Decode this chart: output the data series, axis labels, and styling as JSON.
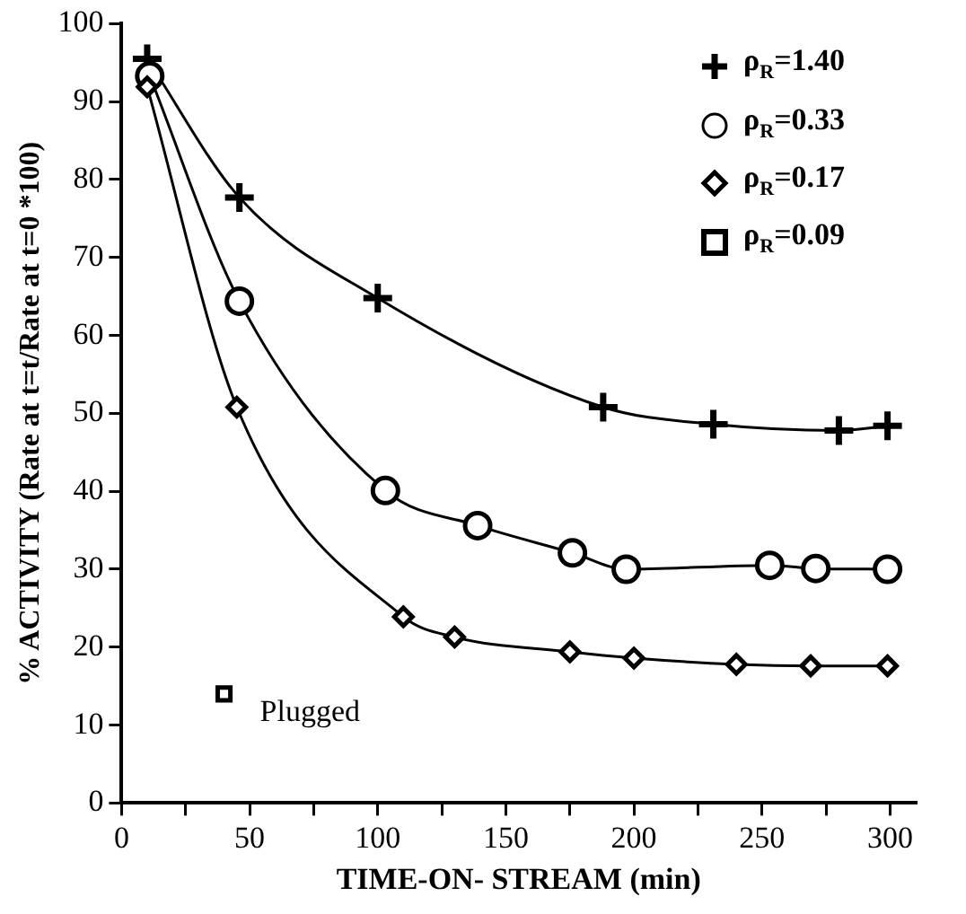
{
  "chart_data": {
    "type": "line",
    "xlabel": "TIME-ON- STREAM (min)",
    "ylabel": "% ACTIVITY (Rate at t=t/Rate at t=0 *100)",
    "xlim": [
      0,
      310
    ],
    "xticks": [
      0,
      {
        "value": 25,
        "label": null
      },
      50,
      {
        "value": 75,
        "label": null
      },
      100,
      {
        "value": 125,
        "label": null
      },
      150,
      {
        "value": 175,
        "label": null
      },
      200,
      {
        "value": 225,
        "label": null
      },
      250,
      {
        "value": 275,
        "label": null
      },
      300
    ],
    "ylim": [
      0,
      100
    ],
    "yticks": [
      0,
      10,
      20,
      30,
      40,
      50,
      60,
      70,
      80,
      90,
      100
    ],
    "grid": false,
    "legend": "top right",
    "line_style": "solid",
    "series": [
      {
        "name": "ρ$_{R}$=1.40",
        "marker": "cross",
        "color": "#000000",
        "x": [
          10,
          46,
          100,
          188,
          231,
          280,
          299
        ],
        "values": [
          95.5,
          77.7,
          64.8,
          50.8,
          48.6,
          47.8,
          48.4
        ]
      },
      {
        "name": "ρ$_{R}$=0.33",
        "marker": "circle",
        "color": "#000000",
        "x": [
          11,
          46,
          103,
          139,
          176,
          197,
          253,
          271,
          299
        ],
        "values": [
          93.3,
          64.4,
          40.1,
          35.6,
          32.1,
          30.0,
          30.5,
          30.1,
          30.0
        ]
      },
      {
        "name": "ρ$_{R}$=0.17",
        "marker": "diamond",
        "color": "#000000",
        "x": [
          10,
          45,
          110,
          130,
          175,
          200,
          240,
          269,
          299
        ],
        "values": [
          91.9,
          50.8,
          23.9,
          21.3,
          19.4,
          18.6,
          17.8,
          17.6,
          17.6
        ]
      },
      {
        "name": "ρ$_{R}$=0.09",
        "marker": "square",
        "color": "#000000",
        "x": [
          40
        ],
        "values": [
          14.0
        ]
      }
    ],
    "annotations": [
      {
        "text": "Plugged",
        "x": 40,
        "y": 14
      }
    ]
  }
}
